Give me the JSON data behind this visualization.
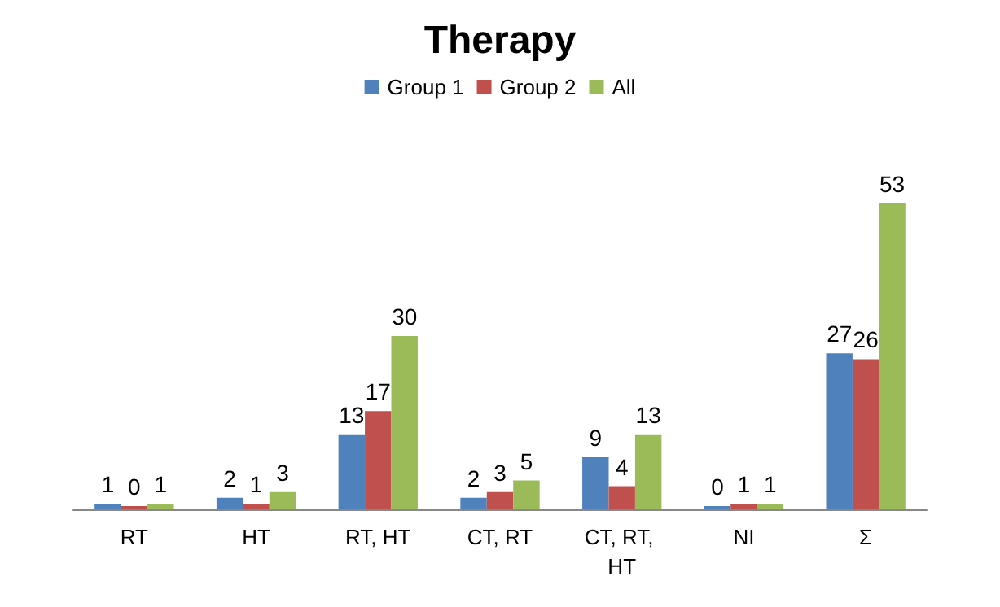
{
  "chart_data": {
    "type": "bar",
    "title": "Therapy",
    "categories": [
      "RT",
      "HT",
      "RT, HT",
      "CT, RT",
      "CT, RT, HT",
      "NI",
      "Σ"
    ],
    "series": [
      {
        "name": "Group 1",
        "color": "#4f81bd",
        "values": [
          1,
          2,
          13,
          2,
          9,
          0,
          27
        ]
      },
      {
        "name": "Group 2",
        "color": "#c0504d",
        "values": [
          0,
          1,
          17,
          3,
          4,
          1,
          26
        ]
      },
      {
        "name": "All",
        "color": "#9bbb59",
        "values": [
          1,
          3,
          30,
          5,
          13,
          1,
          53
        ]
      }
    ],
    "data_labels": true,
    "legend": "top",
    "grid": false,
    "tick_labels": "x"
  }
}
